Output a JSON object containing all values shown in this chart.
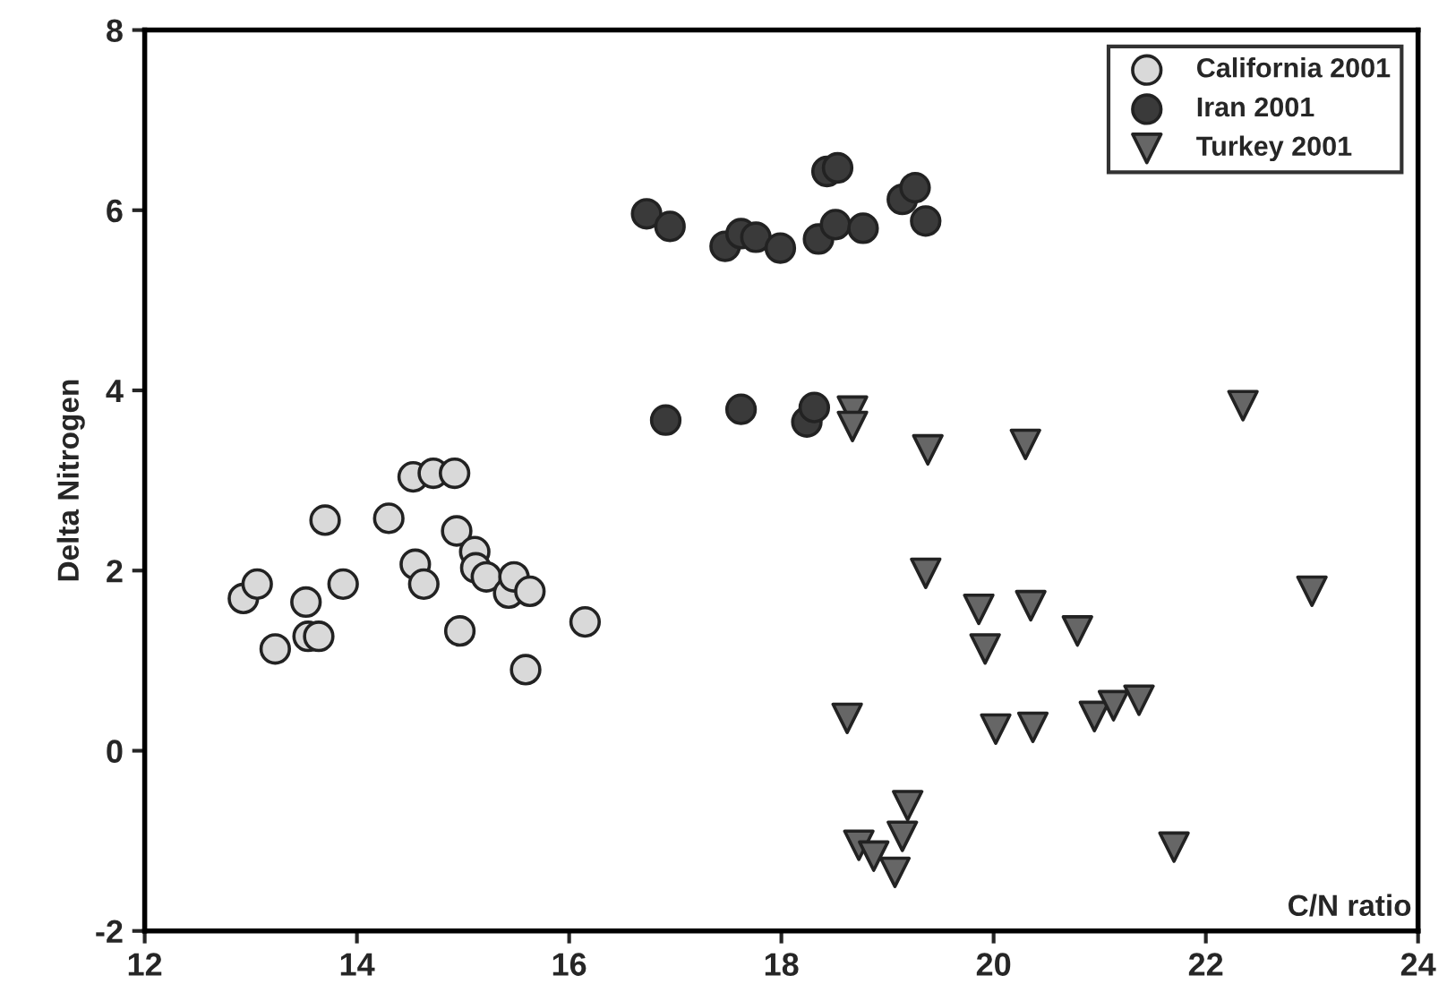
{
  "chart_data": {
    "type": "scatter",
    "xlabel": "C/N ratio",
    "ylabel": "Delta Nitrogen",
    "xlim": [
      12,
      24
    ],
    "xticks": [
      12,
      14,
      16,
      18,
      20,
      22,
      24
    ],
    "ylim": [
      -2,
      8
    ],
    "yticks": [
      -2,
      0,
      2,
      4,
      6,
      8
    ],
    "grid": false,
    "legend": "top right",
    "series": [
      {
        "name": "California 2001",
        "color": "#d9d9d9",
        "marker": "circle",
        "x": [
          12.93,
          13.06,
          13.23,
          13.52,
          13.54,
          13.64,
          13.87,
          13.7,
          14.3,
          14.53,
          14.72,
          14.92,
          14.55,
          14.63,
          14.94,
          15.11,
          15.12,
          15.22,
          15.43,
          15.48,
          15.63,
          14.97,
          15.59,
          16.15
        ],
        "values": [
          1.69,
          1.85,
          1.13,
          1.65,
          1.27,
          1.27,
          1.85,
          2.56,
          2.58,
          3.04,
          3.08,
          3.08,
          2.07,
          1.85,
          2.44,
          2.21,
          2.03,
          1.93,
          1.75,
          1.93,
          1.77,
          1.33,
          0.9,
          1.43
        ]
      },
      {
        "name": "Iran 2001",
        "color": "#3a3a3a",
        "marker": "circle",
        "x": [
          16.73,
          16.95,
          17.47,
          17.62,
          17.76,
          17.99,
          18.35,
          18.51,
          18.77,
          18.43,
          18.53,
          19.14,
          19.26,
          19.36,
          16.91,
          17.62,
          18.24,
          18.31
        ],
        "values": [
          5.96,
          5.82,
          5.6,
          5.74,
          5.7,
          5.58,
          5.68,
          5.84,
          5.8,
          6.43,
          6.47,
          6.12,
          6.25,
          5.88,
          3.67,
          3.79,
          3.65,
          3.81
        ]
      },
      {
        "name": "Turkey 2001",
        "color": "#666666",
        "marker": "triangle",
        "x": [
          18.67,
          18.67,
          19.38,
          20.3,
          22.35,
          19.36,
          23.0,
          19.86,
          20.35,
          20.79,
          19.92,
          18.62,
          20.02,
          20.37,
          20.95,
          21.13,
          21.37,
          19.19,
          19.14,
          18.73,
          18.87,
          19.07,
          21.7
        ],
        "values": [
          3.77,
          3.6,
          3.34,
          3.4,
          3.83,
          1.97,
          1.77,
          1.57,
          1.61,
          1.33,
          1.13,
          0.36,
          0.24,
          0.26,
          0.38,
          0.5,
          0.56,
          -0.61,
          -0.95,
          -1.05,
          -1.17,
          -1.35,
          -1.07
        ]
      }
    ]
  }
}
